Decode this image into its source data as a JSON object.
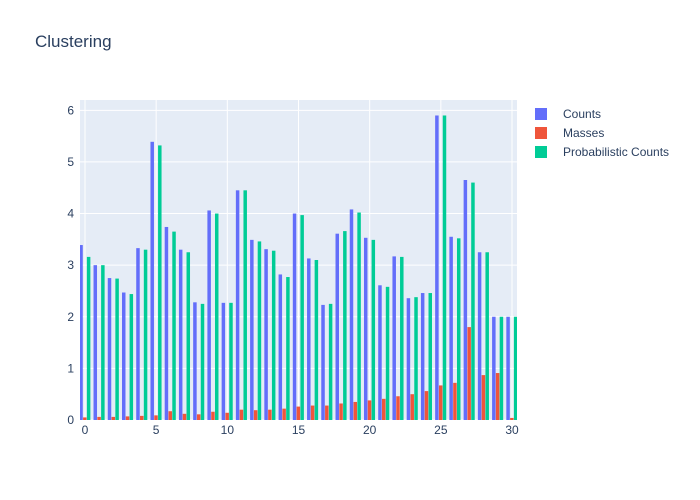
{
  "chart_data": {
    "type": "bar",
    "title": "Clustering",
    "xlabel": "",
    "ylabel": "",
    "x": [
      0,
      1,
      2,
      3,
      4,
      5,
      6,
      7,
      8,
      9,
      10,
      11,
      12,
      13,
      14,
      15,
      16,
      17,
      18,
      19,
      20,
      21,
      22,
      23,
      24,
      25,
      26,
      27,
      28,
      29,
      30
    ],
    "xlim": [
      -0.35,
      30.35
    ],
    "ylim": [
      0,
      6.2
    ],
    "xticks": [
      "0",
      "5",
      "10",
      "15",
      "20",
      "25",
      "30"
    ],
    "yticks": [
      "0",
      "1",
      "2",
      "3",
      "4",
      "5",
      "6"
    ],
    "grid": true,
    "legend_position": "top-right",
    "series": [
      {
        "name": "Counts",
        "color": "#636efa",
        "values": [
          3.39,
          3.0,
          2.75,
          2.47,
          3.33,
          5.39,
          3.74,
          3.3,
          2.28,
          4.06,
          2.27,
          4.45,
          3.49,
          3.31,
          2.82,
          4.0,
          3.13,
          2.23,
          3.61,
          4.08,
          3.53,
          2.61,
          3.17,
          2.36,
          2.46,
          5.9,
          3.55,
          4.65,
          3.25,
          2.0,
          2.0
        ]
      },
      {
        "name": "Masses",
        "color": "#ef553b",
        "values": [
          0.05,
          0.06,
          0.06,
          0.07,
          0.08,
          0.09,
          0.17,
          0.12,
          0.11,
          0.16,
          0.14,
          0.2,
          0.19,
          0.2,
          0.22,
          0.26,
          0.28,
          0.28,
          0.32,
          0.35,
          0.38,
          0.41,
          0.46,
          0.5,
          0.56,
          0.67,
          0.72,
          1.8,
          0.87,
          0.91,
          0.04
        ]
      },
      {
        "name": "Probabilistic Counts",
        "color": "#00cc96",
        "values": [
          3.16,
          3.0,
          2.74,
          2.44,
          3.3,
          5.32,
          3.65,
          3.25,
          2.25,
          4.0,
          2.27,
          4.45,
          3.46,
          3.28,
          2.77,
          3.97,
          3.1,
          2.25,
          3.66,
          4.02,
          3.49,
          2.58,
          3.16,
          2.38,
          2.46,
          5.9,
          3.52,
          4.6,
          3.25,
          2.0,
          2.0
        ]
      }
    ]
  }
}
